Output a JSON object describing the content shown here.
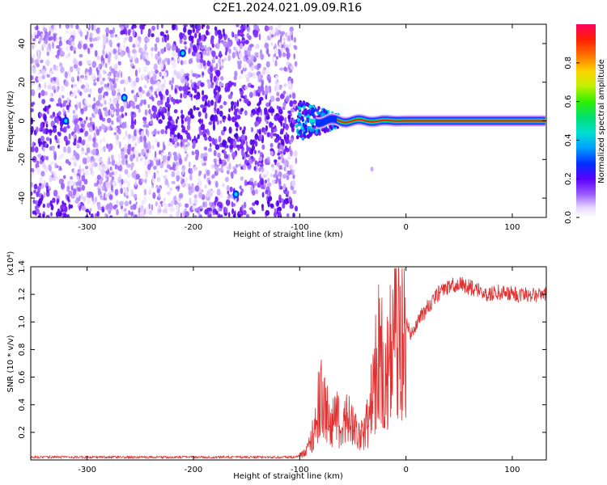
{
  "title": "C2E1.2024.021.09.09.R16",
  "chart_data": [
    {
      "type": "heatmap",
      "name": "spectrogram",
      "xlabel": "Height of straight line (km)",
      "ylabel": "Frequency (Hz)",
      "xlim": [
        -353,
        132
      ],
      "ylim": [
        -50,
        50
      ],
      "xticks": [
        -300,
        -200,
        -100,
        0,
        100
      ],
      "yticks": [
        -40,
        -20,
        0,
        20,
        40
      ],
      "colorbar": {
        "label": "Normalized spectral amplitude",
        "ticks": [
          "0.0",
          "0.2",
          "0.4",
          "0.6",
          "0.8"
        ],
        "tick_values": [
          0.0,
          0.2,
          0.4,
          0.6,
          0.8
        ],
        "range": [
          0,
          1
        ]
      },
      "description_regions": [
        {
          "x_range": [
            -353,
            -103
          ],
          "freq_range": [
            -50,
            50
          ],
          "amplitude": "low, noisy (purple/blue speckle)"
        },
        {
          "x_range": [
            -103,
            -75
          ],
          "freq_range": [
            -10,
            10
          ],
          "amplitude": "medium (blue/cyan)"
        },
        {
          "x_range": [
            -75,
            132
          ],
          "freq_range": [
            -3,
            3
          ],
          "amplitude": "high (red core near 0 Hz)"
        }
      ],
      "hotspots": [
        {
          "x": -210,
          "freq": 35
        },
        {
          "x": -265,
          "freq": 12
        },
        {
          "x": -320,
          "freq": 0
        },
        {
          "x": -160,
          "freq": -38
        }
      ]
    },
    {
      "type": "line",
      "name": "snr",
      "xlabel": "Height of straight line (km)",
      "ylabel": "SNR (10 * v/v)",
      "exponent_label": "(x10⁴)",
      "xlim": [
        -353,
        132
      ],
      "ylim": [
        0,
        1.4
      ],
      "xticks": [
        -300,
        -200,
        -100,
        0,
        100
      ],
      "yticks": [
        "0.2",
        "0.4",
        "0.6",
        "0.8",
        "1.0",
        "1.2",
        "1.4"
      ],
      "ytick_values": [
        0.2,
        0.4,
        0.6,
        0.8,
        1.0,
        1.2,
        1.4
      ],
      "color": "#e03030",
      "series": [
        {
          "name": "SNR",
          "x": [
            -353,
            -250,
            -150,
            -105,
            -100,
            -95,
            -90,
            -85,
            -80,
            -75,
            -70,
            -65,
            -60,
            -55,
            -50,
            -45,
            -40,
            -35,
            -30,
            -25,
            -20,
            -15,
            -10,
            -5,
            0,
            5,
            10,
            15,
            20,
            25,
            30,
            40,
            50,
            60,
            70,
            80,
            90,
            100,
            110,
            120,
            132
          ],
          "y": [
            0.02,
            0.02,
            0.02,
            0.02,
            0.03,
            0.05,
            0.12,
            0.3,
            0.45,
            0.35,
            0.25,
            0.3,
            0.2,
            0.35,
            0.25,
            0.2,
            0.18,
            0.3,
            0.55,
            0.9,
            0.5,
            0.8,
            0.95,
            0.9,
            1.0,
            0.9,
            1.0,
            1.05,
            1.1,
            1.15,
            1.2,
            1.25,
            1.28,
            1.25,
            1.22,
            1.2,
            1.22,
            1.2,
            1.2,
            1.2,
            1.2
          ]
        }
      ]
    }
  ]
}
